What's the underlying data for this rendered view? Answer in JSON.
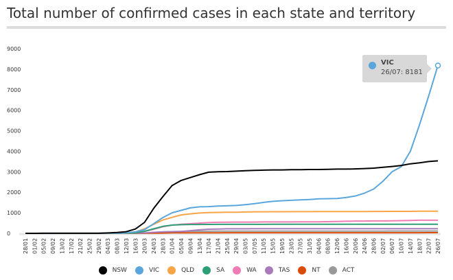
{
  "chart_data": {
    "type": "line",
    "title": "Total number of confirmed cases in each state and territory",
    "ylim": [
      0,
      9000
    ],
    "yticks": [
      0,
      1000,
      2000,
      3000,
      4000,
      5000,
      6000,
      7000,
      8000,
      9000
    ],
    "grid": false,
    "legend_position": "bottom",
    "x": [
      "28/01",
      "01/02",
      "05/02",
      "09/02",
      "13/02",
      "17/02",
      "21/02",
      "25/02",
      "29/02",
      "04/03",
      "08/03",
      "12/03",
      "16/03",
      "20/03",
      "24/03",
      "28/03",
      "01/04",
      "05/04",
      "09/04",
      "13/04",
      "17/04",
      "21/04",
      "25/04",
      "29/04",
      "03/05",
      "07/05",
      "11/05",
      "15/05",
      "19/05",
      "23/05",
      "27/05",
      "31/05",
      "04/06",
      "08/06",
      "12/06",
      "16/06",
      "20/06",
      "24/06",
      "28/06",
      "02/07",
      "06/07",
      "10/07",
      "14/07",
      "18/07",
      "22/07",
      "26/07"
    ],
    "series": [
      {
        "name": "NSW",
        "color": "#000000",
        "values": [
          0,
          1,
          2,
          2,
          3,
          3,
          4,
          4,
          4,
          20,
          40,
          80,
          210,
          535,
          1220,
          1790,
          2330,
          2580,
          2720,
          2860,
          2980,
          3000,
          3010,
          3030,
          3050,
          3070,
          3080,
          3090,
          3090,
          3100,
          3100,
          3110,
          3110,
          3120,
          3130,
          3130,
          3140,
          3160,
          3180,
          3220,
          3260,
          3310,
          3390,
          3440,
          3500,
          3532
        ]
      },
      {
        "name": "VIC",
        "color": "#5aa6dc",
        "values": [
          0,
          1,
          2,
          2,
          3,
          4,
          4,
          4,
          4,
          10,
          12,
          30,
          70,
          180,
          470,
          770,
          1000,
          1120,
          1240,
          1290,
          1300,
          1330,
          1340,
          1360,
          1400,
          1450,
          1510,
          1560,
          1590,
          1610,
          1630,
          1650,
          1680,
          1690,
          1700,
          1750,
          1820,
          1960,
          2160,
          2540,
          3000,
          3250,
          4000,
          5300,
          6700,
          8181
        ]
      },
      {
        "name": "QLD",
        "color": "#f9a447",
        "values": [
          0,
          0,
          1,
          2,
          3,
          4,
          5,
          5,
          5,
          9,
          15,
          30,
          70,
          220,
          440,
          650,
          780,
          900,
          950,
          990,
          1010,
          1020,
          1030,
          1030,
          1040,
          1050,
          1050,
          1055,
          1055,
          1058,
          1058,
          1058,
          1060,
          1060,
          1060,
          1062,
          1065,
          1065,
          1067,
          1067,
          1070,
          1070,
          1070,
          1080,
          1080,
          1080
        ]
      },
      {
        "name": "SA",
        "color": "#2e9e77",
        "values": [
          0,
          0,
          0,
          0,
          0,
          0,
          0,
          0,
          0,
          1,
          3,
          7,
          20,
          100,
          220,
          340,
          400,
          420,
          430,
          433,
          435,
          437,
          438,
          438,
          439,
          439,
          439,
          440,
          440,
          440,
          440,
          440,
          440,
          440,
          440,
          440,
          440,
          440,
          443,
          443,
          443,
          443,
          443,
          443,
          443,
          443
        ]
      },
      {
        "name": "WA",
        "color": "#ef7cb2",
        "values": [
          0,
          0,
          0,
          0,
          0,
          0,
          0,
          0,
          1,
          2,
          3,
          10,
          30,
          90,
          200,
          320,
          400,
          440,
          470,
          500,
          530,
          540,
          545,
          550,
          550,
          550,
          555,
          555,
          557,
          557,
          560,
          560,
          560,
          570,
          580,
          590,
          600,
          600,
          605,
          605,
          610,
          620,
          630,
          640,
          640,
          640
        ]
      },
      {
        "name": "TAS",
        "color": "#a97bba",
        "values": [
          0,
          0,
          0,
          0,
          0,
          0,
          0,
          0,
          0,
          1,
          2,
          5,
          8,
          20,
          50,
          70,
          80,
          90,
          130,
          170,
          200,
          210,
          220,
          220,
          222,
          225,
          225,
          226,
          226,
          226,
          226,
          226,
          226,
          226,
          226,
          226,
          226,
          226,
          226,
          226,
          226,
          228,
          228,
          229,
          229,
          229
        ]
      },
      {
        "name": "NT",
        "color": "#d94b06",
        "values": [
          0,
          0,
          0,
          0,
          0,
          0,
          0,
          0,
          0,
          0,
          0,
          0,
          1,
          3,
          6,
          15,
          25,
          27,
          28,
          28,
          28,
          28,
          29,
          29,
          29,
          29,
          29,
          29,
          29,
          29,
          29,
          29,
          29,
          29,
          29,
          29,
          29,
          29,
          30,
          30,
          30,
          30,
          31,
          31,
          32,
          32
        ]
      },
      {
        "name": "ACT",
        "color": "#999999",
        "values": [
          0,
          0,
          0,
          0,
          0,
          0,
          0,
          0,
          0,
          0,
          0,
          1,
          2,
          10,
          40,
          70,
          85,
          95,
          100,
          103,
          105,
          106,
          106,
          106,
          106,
          106,
          107,
          107,
          107,
          107,
          107,
          107,
          107,
          108,
          108,
          108,
          108,
          108,
          110,
          110,
          113,
          113,
          113,
          113,
          113,
          113
        ]
      }
    ]
  },
  "tooltip": {
    "series": "VIC",
    "label": "26/07: 8181",
    "color": "#5aa6dc"
  }
}
